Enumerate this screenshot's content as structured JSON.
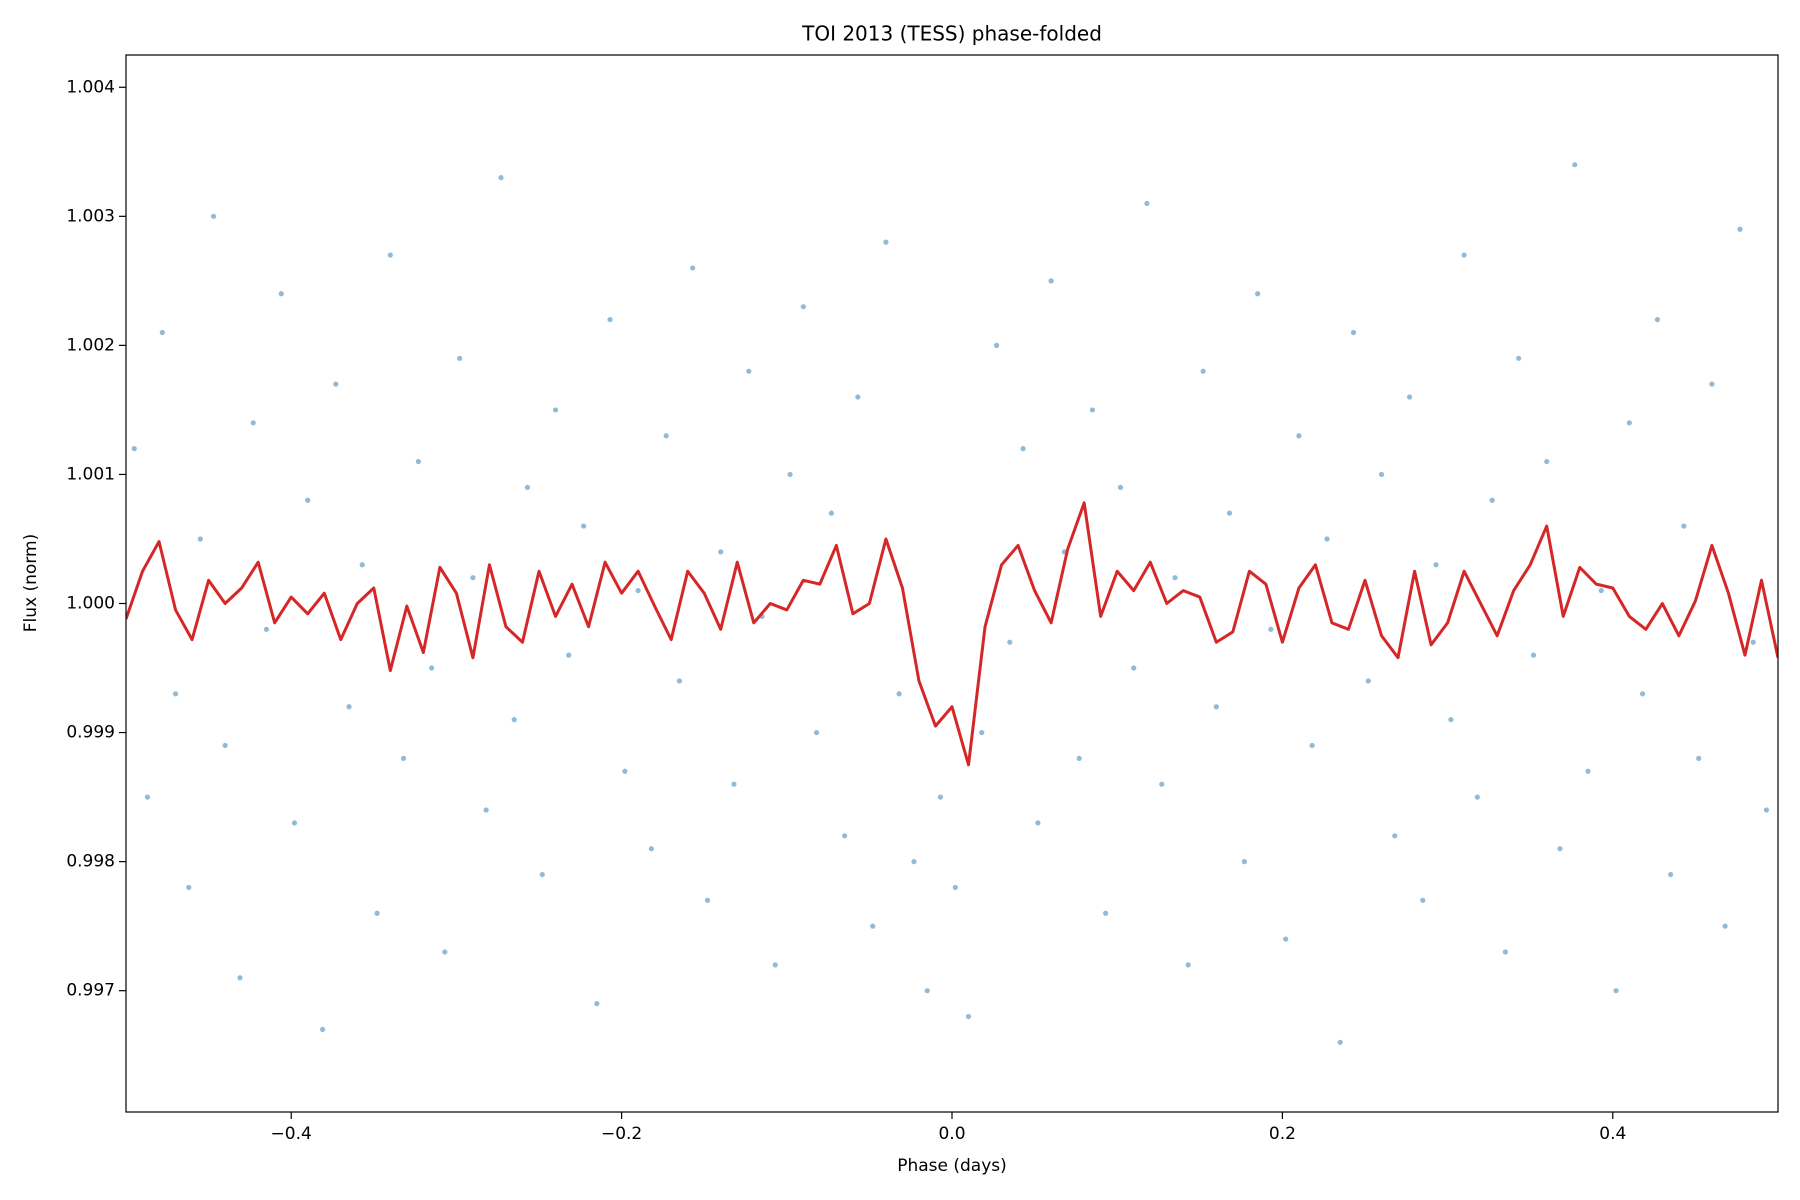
{
  "chart_data": {
    "type": "scatter",
    "title": "TOI 2013 (TESS) phase-folded",
    "xlabel": "Phase (days)",
    "ylabel": "Flux (norm)",
    "xlim": [
      -0.5,
      0.5
    ],
    "ylim": [
      0.99606,
      1.00425
    ],
    "xticks": [
      {
        "value": -0.4,
        "label": "−0.4"
      },
      {
        "value": -0.2,
        "label": "−0.2"
      },
      {
        "value": 0,
        "label": "0.0"
      },
      0.2,
      0.4
    ],
    "yticks": [
      0.997,
      0.998,
      0.999,
      {
        "value": 1,
        "label": "1.000"
      },
      1.001,
      1.002,
      1.003,
      1.004
    ],
    "grid": false,
    "series": [
      {
        "type": "scatter",
        "color": "#1f77b4",
        "x": [
          -0.495,
          -0.487,
          -0.478,
          -0.47,
          -0.462,
          -0.455,
          -0.447,
          -0.44,
          -0.431,
          -0.423,
          -0.415,
          -0.406,
          -0.398,
          -0.39,
          -0.381,
          -0.373,
          -0.365,
          -0.357,
          -0.348,
          -0.34,
          -0.332,
          -0.323,
          -0.315,
          -0.307,
          -0.298,
          -0.29,
          -0.282,
          -0.273,
          -0.265,
          -0.257,
          -0.248,
          -0.24,
          -0.232,
          -0.223,
          -0.215,
          -0.207,
          -0.198,
          -0.19,
          -0.182,
          -0.173,
          -0.165,
          -0.157,
          -0.148,
          -0.14,
          -0.132,
          -0.123,
          -0.115,
          -0.107,
          -0.098,
          -0.09,
          -0.082,
          -0.073,
          -0.065,
          -0.057,
          -0.048,
          -0.04,
          -0.032,
          -0.023,
          -0.015,
          -0.007,
          0.002,
          0.01,
          0.018,
          0.027,
          0.035,
          0.043,
          0.052,
          0.06,
          0.068,
          0.077,
          0.085,
          0.093,
          0.102,
          0.11,
          0.118,
          0.127,
          0.135,
          0.143,
          0.152,
          0.16,
          0.168,
          0.177,
          0.185,
          0.193,
          0.202,
          0.21,
          0.218,
          0.227,
          0.235,
          0.243,
          0.252,
          0.26,
          0.268,
          0.277,
          0.285,
          0.293,
          0.302,
          0.31,
          0.318,
          0.327,
          0.335,
          0.343,
          0.352,
          0.36,
          0.368,
          0.377,
          0.385,
          0.393,
          0.402,
          0.41,
          0.418,
          0.427,
          0.435,
          0.443,
          0.452,
          0.46,
          0.468,
          0.477,
          0.485,
          0.493
        ],
        "values": [
          1.0012,
          0.9985,
          1.0021,
          0.9993,
          0.9978,
          1.0005,
          1.003,
          0.9989,
          0.9971,
          1.0014,
          0.9998,
          1.0024,
          0.9983,
          1.0008,
          0.9967,
          1.0017,
          0.9992,
          1.0003,
          0.9976,
          1.0027,
          0.9988,
          1.0011,
          0.9995,
          0.9973,
          1.0019,
          1.0002,
          0.9984,
          1.0033,
          0.9991,
          1.0009,
          0.9979,
          1.0015,
          0.9996,
          1.0006,
          0.9969,
          1.0022,
          0.9987,
          1.0001,
          0.9981,
          1.0013,
          0.9994,
          1.0026,
          0.9977,
          1.0004,
          0.9986,
          1.0018,
          0.9999,
          0.9972,
          1.001,
          1.0023,
          0.999,
          1.0007,
          0.9982,
          1.0016,
          0.9975,
          1.0028,
          0.9993,
          0.998,
          0.997,
          0.9985,
          0.9978,
          0.9968,
          0.999,
          1.002,
          0.9997,
          1.0012,
          0.9983,
          1.0025,
          1.0004,
          0.9988,
          1.0015,
          0.9976,
          1.0009,
          0.9995,
          1.0031,
          0.9986,
          1.0002,
          0.9972,
          1.0018,
          0.9992,
          1.0007,
          0.998,
          1.0024,
          0.9998,
          0.9974,
          1.0013,
          0.9989,
          1.0005,
          0.9966,
          1.0021,
          0.9994,
          1.001,
          0.9982,
          1.0016,
          0.9977,
          1.0003,
          0.9991,
          1.0027,
          0.9985,
          1.0008,
          0.9973,
          1.0019,
          0.9996,
          1.0011,
          0.9981,
          1.0034,
          0.9987,
          1.0001,
          0.997,
          1.0014,
          0.9993,
          1.0022,
          0.9979,
          1.0006,
          0.9988,
          1.0017,
          0.9975,
          1.0029,
          0.9997,
          0.9984
        ]
      },
      {
        "type": "line",
        "color": "#d62728",
        "x": [
          -0.5,
          -0.49,
          -0.48,
          -0.47,
          -0.46,
          -0.45,
          -0.44,
          -0.43,
          -0.42,
          -0.41,
          -0.4,
          -0.39,
          -0.38,
          -0.37,
          -0.36,
          -0.35,
          -0.34,
          -0.33,
          -0.32,
          -0.31,
          -0.3,
          -0.29,
          -0.28,
          -0.27,
          -0.26,
          -0.25,
          -0.24,
          -0.23,
          -0.22,
          -0.21,
          -0.2,
          -0.19,
          -0.18,
          -0.17,
          -0.16,
          -0.15,
          -0.14,
          -0.13,
          -0.12,
          -0.11,
          -0.1,
          -0.09,
          -0.08,
          -0.07,
          -0.06,
          -0.05,
          -0.04,
          -0.03,
          -0.02,
          -0.01,
          0,
          0.01,
          0.02,
          0.03,
          0.04,
          0.05,
          0.06,
          0.07,
          0.08,
          0.09,
          0.1,
          0.11,
          0.12,
          0.13,
          0.14,
          0.15,
          0.16,
          0.17,
          0.18,
          0.19,
          0.2,
          0.21,
          0.22,
          0.23,
          0.24,
          0.25,
          0.26,
          0.27,
          0.28,
          0.29,
          0.3,
          0.31,
          0.32,
          0.33,
          0.34,
          0.35,
          0.36,
          0.37,
          0.38,
          0.39,
          0.4,
          0.41,
          0.42,
          0.43,
          0.44,
          0.45,
          0.46,
          0.47,
          0.48,
          0.49,
          0.5
        ],
        "values": [
          0.99988,
          1.00025,
          1.00048,
          0.99995,
          0.99972,
          1.00018,
          1.0,
          1.00012,
          1.00032,
          0.99985,
          1.00005,
          0.99992,
          1.00008,
          0.99972,
          1.0,
          1.00012,
          0.99948,
          0.99998,
          0.99962,
          1.00028,
          1.00008,
          0.99958,
          1.0003,
          0.99982,
          0.9997,
          1.00025,
          0.9999,
          1.00015,
          0.99982,
          1.00032,
          1.00008,
          1.00025,
          0.99998,
          0.99972,
          1.00025,
          1.00008,
          0.9998,
          1.00032,
          0.99985,
          1.0,
          0.99995,
          1.00018,
          1.00015,
          1.00045,
          0.99992,
          1.0,
          1.0005,
          1.00012,
          0.9994,
          0.99905,
          0.9992,
          0.99875,
          0.99982,
          1.0003,
          1.00045,
          1.0001,
          0.99985,
          1.00042,
          1.00078,
          0.9999,
          1.00025,
          1.0001,
          1.00032,
          1.0,
          1.0001,
          1.00005,
          0.9997,
          0.99978,
          1.00025,
          1.00015,
          0.9997,
          1.00012,
          1.0003,
          0.99985,
          0.9998,
          1.00018,
          0.99975,
          0.99958,
          1.00025,
          0.99968,
          0.99985,
          1.00025,
          1.0,
          0.99975,
          1.0001,
          1.0003,
          1.0006,
          0.9999,
          1.00028,
          1.00015,
          1.00012,
          0.9999,
          0.9998,
          1.0,
          0.99975,
          1.00002,
          1.00045,
          1.00008,
          0.9996,
          1.00018,
          0.99958
        ]
      }
    ]
  }
}
